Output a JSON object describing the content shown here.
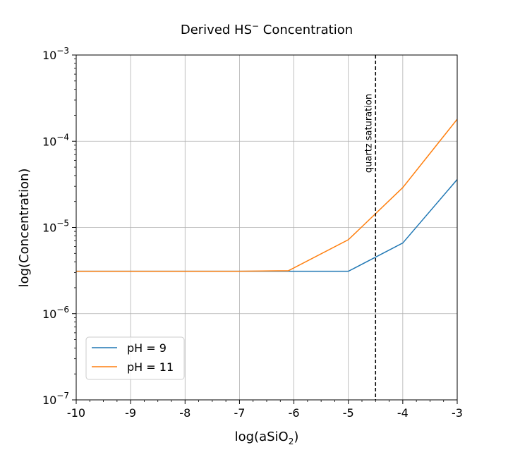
{
  "chart_data": {
    "type": "line",
    "title_main": "Derived HS",
    "title_sup": "−",
    "title_rest": " Concentration",
    "xlabel_main": "log(aSiO",
    "xlabel_sub": "2",
    "xlabel_end": ")",
    "ylabel": "log(Concentration)",
    "xlim": [
      -10,
      -3
    ],
    "ylim_log10": [
      -7,
      -3
    ],
    "x_ticks": [
      {
        "value": -10,
        "label": "-10"
      },
      {
        "value": -9,
        "label": "-9"
      },
      {
        "value": -8,
        "label": "-8"
      },
      {
        "value": -7,
        "label": "-7"
      },
      {
        "value": -6,
        "label": "-6"
      },
      {
        "value": -5,
        "label": "-5"
      },
      {
        "value": -4,
        "label": "-4"
      },
      {
        "value": -3,
        "label": "-3"
      }
    ],
    "y_ticks": [
      {
        "exp": -3,
        "base": "10",
        "sup": "−3"
      },
      {
        "exp": -4,
        "base": "10",
        "sup": "−4"
      },
      {
        "exp": -5,
        "base": "10",
        "sup": "−5"
      },
      {
        "exp": -6,
        "base": "10",
        "sup": "−6"
      },
      {
        "exp": -7,
        "base": "10",
        "sup": "−7"
      }
    ],
    "series": [
      {
        "name": "pH = 9",
        "color": "#1f77b4",
        "x": [
          -10,
          -9,
          -8,
          -7,
          -6,
          -5,
          -4,
          -3
        ],
        "y": [
          3.1e-06,
          3.1e-06,
          3.1e-06,
          3.1e-06,
          3.1e-06,
          3.1e-06,
          6.6e-06,
          3.6e-05
        ]
      },
      {
        "name": "pH = 11",
        "color": "#ff7f0e",
        "x": [
          -10,
          -9,
          -8,
          -7,
          -6.1,
          -5,
          -4,
          -3
        ],
        "y": [
          3.1e-06,
          3.1e-06,
          3.1e-06,
          3.1e-06,
          3.15e-06,
          7.2e-06,
          2.9e-05,
          0.00018
        ]
      }
    ],
    "vline": {
      "x": -4.5,
      "label": "quartz saturation",
      "style": "dashed",
      "color": "#000000"
    },
    "legend_position": "lower-left",
    "grid": true
  }
}
